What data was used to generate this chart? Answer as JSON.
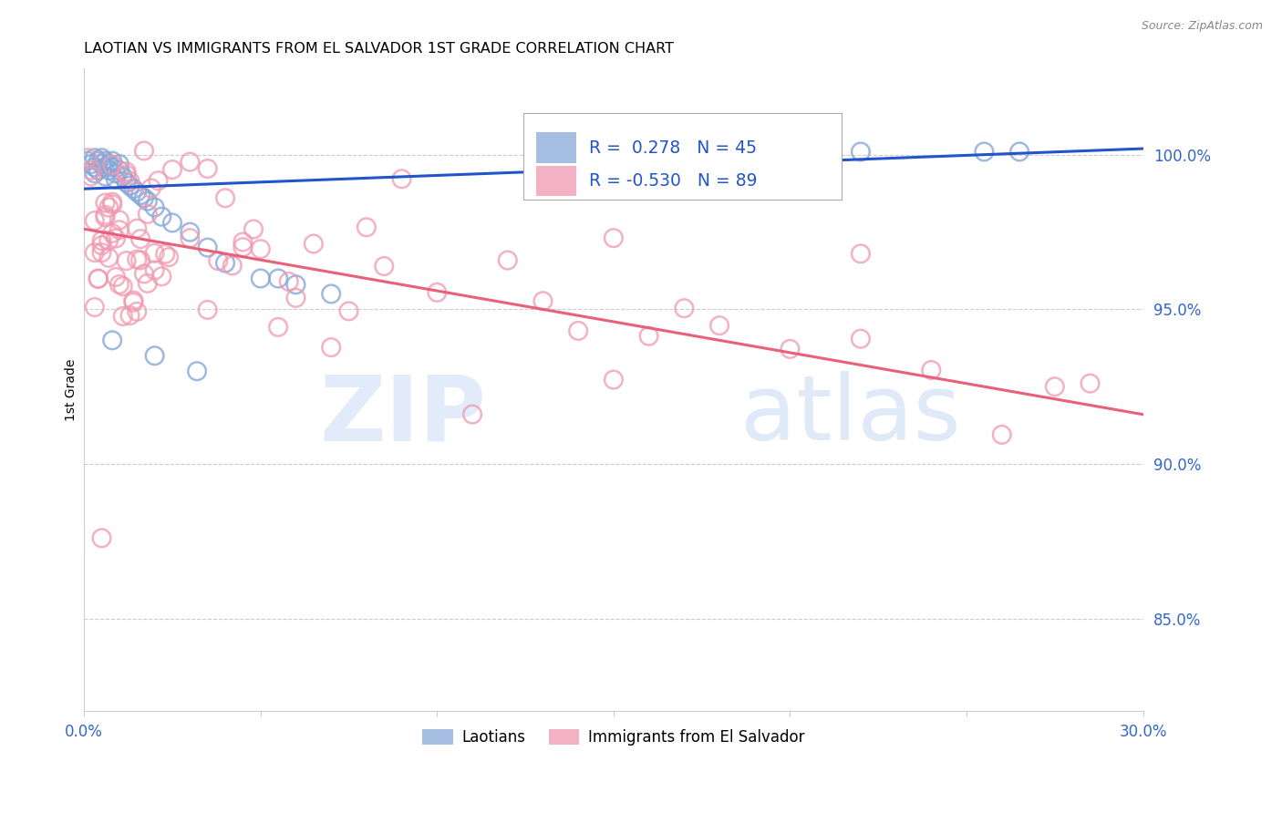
{
  "title": "LAOTIAN VS IMMIGRANTS FROM EL SALVADOR 1ST GRADE CORRELATION CHART",
  "source": "Source: ZipAtlas.com",
  "ylabel": "1st Grade",
  "ytick_labels": [
    "85.0%",
    "90.0%",
    "95.0%",
    "100.0%"
  ],
  "ytick_values": [
    0.85,
    0.9,
    0.95,
    1.0
  ],
  "xmin": 0.0,
  "xmax": 0.3,
  "ymin": 0.82,
  "ymax": 1.028,
  "legend_blue_label": "Laotians",
  "legend_pink_label": "Immigrants from El Salvador",
  "blue_R": 0.278,
  "blue_N": 45,
  "pink_R": -0.53,
  "pink_N": 89,
  "blue_color": "#89A8D8",
  "pink_color": "#F099B0",
  "blue_line_color": "#2255CC",
  "pink_line_color": "#E8607A",
  "blue_line_y0": 0.989,
  "blue_line_y1": 1.002,
  "pink_line_y0": 0.976,
  "pink_line_y1": 0.916
}
